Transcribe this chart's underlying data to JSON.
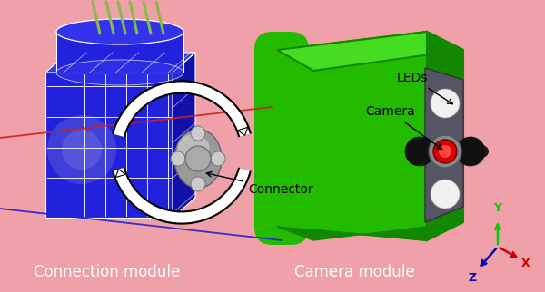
{
  "background_color": "#f0a0a8",
  "connection_module_label": "Connection module",
  "camera_module_label": "Camera module",
  "connector_label": "Connector",
  "camera_label": "Camera",
  "leds_label": "LEDs",
  "label_color": "white",
  "label_fontsize": 12,
  "annotation_color": "black",
  "annotation_fontsize": 10,
  "axis_y_color": "#00cc00",
  "axis_x_color": "#cc0000",
  "axis_z_color": "#0000bb",
  "blue_body": "#2222dd",
  "blue_dark": "#1111aa",
  "blue_mid": "#3333ee",
  "green_body": "#22bb00",
  "green_light": "#44dd22",
  "green_dark": "#118800",
  "connector_gray": "#999999",
  "connector_light": "#cccccc",
  "led_white": "#f0f0f0",
  "camera_red": "#dd0000",
  "camera_dark": "#111111",
  "face_gray": "#555566",
  "arrow_white": "#ffffff",
  "rod_green": "#88bb44",
  "wire_color": "#ffffff"
}
